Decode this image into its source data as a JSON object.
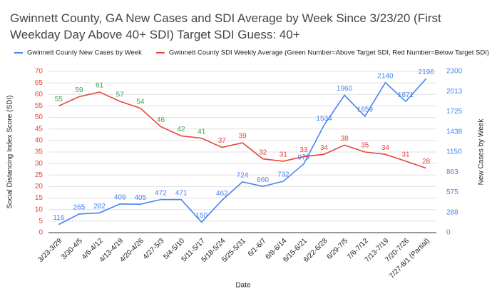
{
  "chart_data": {
    "type": "line",
    "title": "Gwinnett County, GA New Cases and SDI Average by Week Since 3/23/20 (First Weekday Day Above 40+ SDI) Target SDI Guess: 40+",
    "x_label": "Date",
    "y_label": "Social Distancing Index Score (SDI)",
    "y2_label": "New Cases by Week",
    "categories": [
      "3/23-3/29",
      "3/30-4/5",
      "4/6-4/12",
      "4/13-4/19",
      "4/20-4/26",
      "4/27-5/3",
      "5/4-5/10",
      "5/11-5/17",
      "5/18-5/24",
      "5/25-5/31",
      "6/1-6/7",
      "6/8-6/14",
      "6/15-6/21",
      "6/22-6/28",
      "6/29-7/5",
      "7/6-7/12",
      "7/13-7/19",
      "7/20-7/26",
      "7/27-8/1 (Partial)"
    ],
    "series": [
      {
        "name": "Gwinnett County New Cases by Week",
        "color": "#4285f4",
        "axis": "y2",
        "values": [
          116,
          265,
          282,
          409,
          405,
          472,
          471,
          150,
          462,
          724,
          660,
          732,
          979,
          1534,
          1960,
          1659,
          2140,
          1871,
          2196
        ],
        "label_colors": [
          "#4285f4",
          "#4285f4",
          "#4285f4",
          "#4285f4",
          "#4285f4",
          "#4285f4",
          "#4285f4",
          "#4285f4",
          "#4285f4",
          "#4285f4",
          "#4285f4",
          "#4285f4",
          "#4285f4",
          "#4285f4",
          "#4285f4",
          "#4285f4",
          "#4285f4",
          "#4285f4",
          "#4285f4"
        ]
      },
      {
        "name": "Gwinnett County SDI Weekly Average (Green Number=Above Target SDI, Red Number=Below Target SDI)",
        "color": "#ea4335",
        "axis": "y",
        "values": [
          55,
          59,
          61,
          57,
          54,
          46,
          42,
          41,
          37,
          39,
          32,
          31,
          33,
          34,
          38,
          35,
          34,
          31,
          28
        ],
        "label_colors": [
          "#34a853",
          "#34a853",
          "#34a853",
          "#34a853",
          "#34a853",
          "#34a853",
          "#34a853",
          "#34a853",
          "#ea4335",
          "#ea4335",
          "#ea4335",
          "#ea4335",
          "#ea4335",
          "#ea4335",
          "#ea4335",
          "#ea4335",
          "#ea4335",
          "#ea4335",
          "#ea4335"
        ]
      }
    ],
    "ylim": [
      0,
      70
    ],
    "yticks": [
      0,
      5,
      10,
      15,
      20,
      25,
      30,
      35,
      40,
      45,
      50,
      55,
      60,
      65,
      70
    ],
    "ytick_color": "#ea4335",
    "y2lim": [
      0,
      2300
    ],
    "y2ticks": [
      0,
      288,
      575,
      863,
      1150,
      1438,
      1725,
      2013,
      2300
    ],
    "y2tick_color": "#4285f4",
    "grid": true
  }
}
